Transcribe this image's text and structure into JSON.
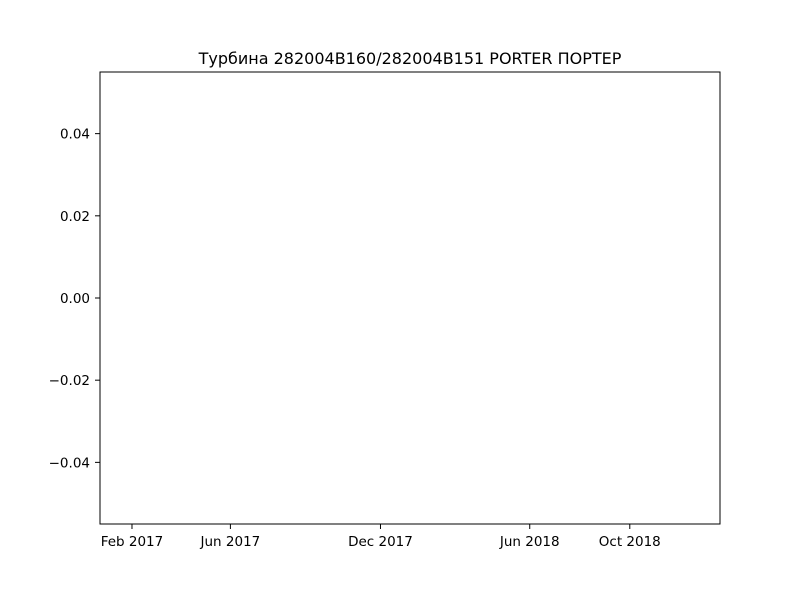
{
  "chart_data": {
    "type": "line",
    "title": "Турбина 282004B160/282004B151 PORTER ПОРТЕР",
    "xlabel": "",
    "ylabel": "",
    "x": [],
    "series": [
      {
        "values": []
      }
    ],
    "x_axis_type": "date",
    "xlim": [
      "2016-12-24",
      "2019-01-19"
    ],
    "ylim": [
      -0.055,
      0.055
    ],
    "xticks": [
      {
        "label": "Feb 2017",
        "value": "2017-02-01"
      },
      {
        "label": "Jun 2017",
        "value": "2017-06-01"
      },
      {
        "label": "Dec 2017",
        "value": "2017-12-01"
      },
      {
        "label": "Jun 2018",
        "value": "2018-06-01"
      },
      {
        "label": "Oct 2018",
        "value": "2018-10-01"
      }
    ],
    "yticks": [
      {
        "label": "0.04",
        "value": 0.04
      },
      {
        "label": "0.02",
        "value": 0.02
      },
      {
        "label": "0.00",
        "value": 0.0
      },
      {
        "label": "−0.02",
        "value": -0.02
      },
      {
        "label": "−0.04",
        "value": -0.04
      }
    ],
    "grid": false,
    "legend": "none"
  }
}
